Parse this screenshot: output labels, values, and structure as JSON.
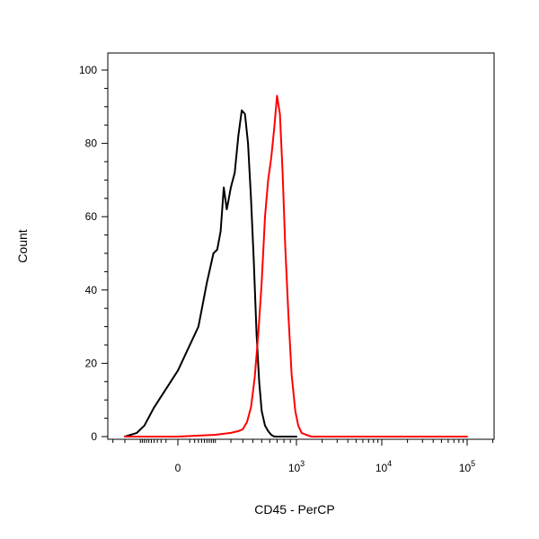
{
  "chart_data": {
    "type": "histogram",
    "xlabel": "CD45 - PerCP",
    "ylabel": "Count",
    "x_scale": "biexponential",
    "ylim": [
      0,
      100
    ],
    "y_ticks": [
      "0",
      "20",
      "40",
      "60",
      "80",
      "100"
    ],
    "x_ticks": [
      {
        "base": "0",
        "exp": ""
      },
      {
        "base": "10",
        "exp": "3"
      },
      {
        "base": "10",
        "exp": "4"
      },
      {
        "base": "10",
        "exp": "5"
      }
    ],
    "series": [
      {
        "color": "#000000",
        "x": [
          -200,
          -120,
          -80,
          -40,
          0,
          30,
          60,
          90,
          110,
          130,
          150,
          170,
          180,
          200,
          230,
          260,
          290,
          320,
          350,
          380,
          410,
          440,
          470,
          500,
          540,
          580,
          620,
          660,
          700,
          750,
          800,
          900,
          1000
        ],
        "y": [
          0,
          1,
          3,
          8,
          18,
          30,
          42,
          50,
          51,
          56,
          68,
          62,
          64,
          68,
          72,
          82,
          89,
          88,
          80,
          65,
          48,
          28,
          15,
          7,
          3,
          1.5,
          0.5,
          0,
          0,
          0,
          0,
          0,
          0
        ]
      },
      {
        "color": "#ff0000",
        "x": [
          -200,
          0,
          100,
          200,
          260,
          300,
          340,
          380,
          420,
          460,
          500,
          540,
          580,
          620,
          660,
          700,
          740,
          780,
          820,
          870,
          920,
          980,
          1050,
          1150,
          1300,
          1500,
          2000,
          5000,
          100000
        ],
        "y": [
          0,
          0,
          0.5,
          1,
          1.5,
          2,
          4,
          8,
          16,
          28,
          42,
          60,
          70,
          76,
          84,
          93,
          88,
          72,
          52,
          33,
          17,
          7,
          3,
          1,
          0.5,
          0,
          0,
          0,
          0
        ]
      }
    ]
  }
}
